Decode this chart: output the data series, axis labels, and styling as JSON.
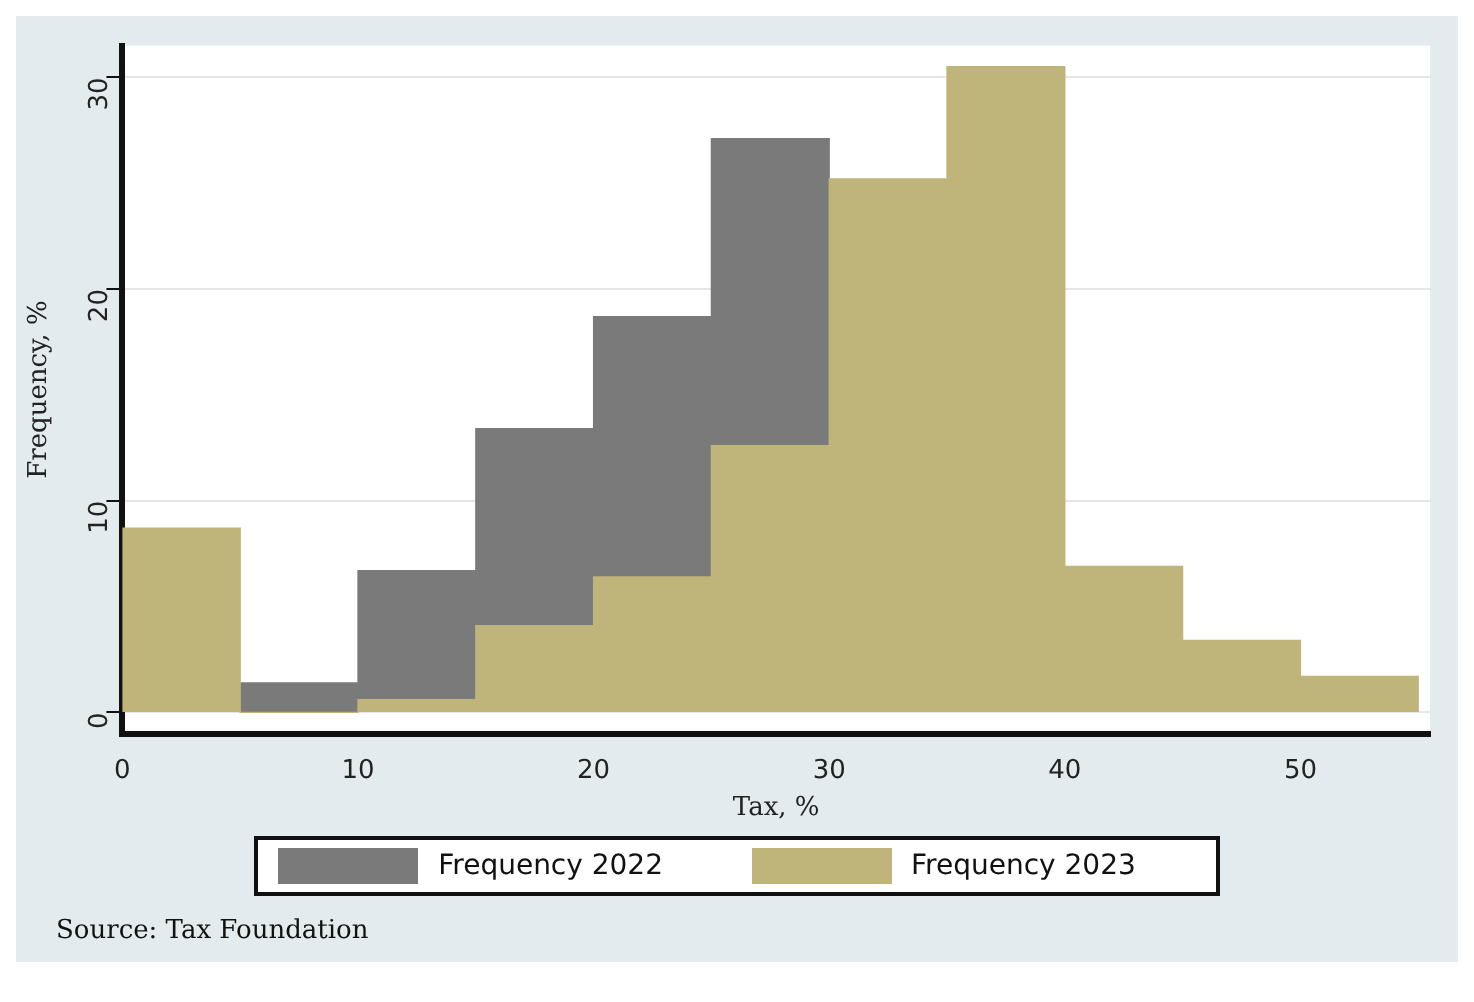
{
  "chart_data": {
    "type": "histogram",
    "xlabel": "Tax, %",
    "ylabel": "Frequency, %",
    "bins": [
      0,
      5,
      10,
      15,
      20,
      25,
      30,
      35,
      40,
      45,
      50,
      55
    ],
    "series": [
      {
        "name": "Frequency 2022",
        "color": "#7a7a7a",
        "values": [
          null,
          1.4,
          6.7,
          13.4,
          18.7,
          27.1,
          null,
          null,
          null,
          null,
          null
        ]
      },
      {
        "name": "Frequency 2023",
        "color": "#bfb57a",
        "values": [
          8.7,
          0,
          0.6,
          4.1,
          6.4,
          12.6,
          25.2,
          30.5,
          6.9,
          3.4,
          1.7
        ]
      }
    ],
    "xlim": [
      0,
      55.5
    ],
    "xticks": [
      0,
      10,
      20,
      30,
      40,
      50
    ],
    "ylim": [
      -1,
      31.5
    ],
    "yticks": [
      0,
      10,
      20,
      30
    ],
    "grid": "y",
    "legend": "bottom",
    "annotations": [
      "Source: Tax Foundation"
    ]
  }
}
